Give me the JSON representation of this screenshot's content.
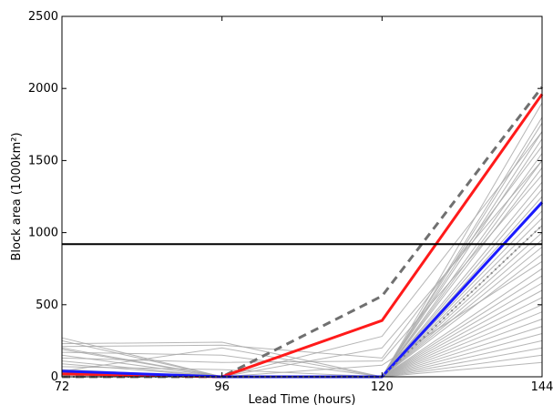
{
  "chart_data": {
    "type": "line",
    "xlabel": "Lead Time (hours)",
    "ylabel": "Block area (1000km²)",
    "x": [
      72,
      96,
      120,
      144
    ],
    "xlim": [
      72,
      144
    ],
    "ylim": [
      0,
      2500
    ],
    "x_ticks": [
      "72",
      "96",
      "120",
      "144"
    ],
    "y_ticks": [
      "0",
      "500",
      "1000",
      "1500",
      "2000",
      "2500"
    ],
    "grid": false,
    "colors": {
      "ensemble": "#a9a9a9",
      "red": "#ff1a1a",
      "blue": "#1a1aff",
      "dashed": "#707070",
      "dotted": "#8a8a8a",
      "threshold": "#000000"
    },
    "threshold": 920,
    "ensemble": [
      [
        270,
        0,
        0,
        1760
      ],
      [
        250,
        0,
        0,
        1700
      ],
      [
        230,
        240,
        0,
        1650
      ],
      [
        210,
        220,
        130,
        1600
      ],
      [
        190,
        0,
        0,
        1550
      ],
      [
        170,
        150,
        0,
        1500
      ],
      [
        150,
        0,
        0,
        1450
      ],
      [
        130,
        100,
        110,
        1400
      ],
      [
        110,
        0,
        0,
        1350
      ],
      [
        90,
        0,
        0,
        1300
      ],
      [
        70,
        50,
        0,
        1250
      ],
      [
        50,
        0,
        0,
        1200
      ],
      [
        40,
        200,
        0,
        1150
      ],
      [
        30,
        0,
        0,
        1100
      ],
      [
        20,
        0,
        0,
        1050
      ],
      [
        10,
        0,
        0,
        1000
      ],
      [
        0,
        0,
        0,
        950
      ],
      [
        0,
        0,
        0,
        900
      ],
      [
        0,
        0,
        0,
        850
      ],
      [
        200,
        0,
        80,
        800
      ],
      [
        0,
        0,
        0,
        750
      ],
      [
        0,
        0,
        0,
        700
      ],
      [
        0,
        0,
        0,
        650
      ],
      [
        0,
        0,
        0,
        600
      ],
      [
        0,
        0,
        0,
        550
      ],
      [
        0,
        0,
        0,
        500
      ],
      [
        0,
        0,
        0,
        450
      ],
      [
        0,
        0,
        0,
        400
      ],
      [
        0,
        0,
        0,
        350
      ],
      [
        0,
        0,
        0,
        300
      ],
      [
        0,
        0,
        0,
        250
      ],
      [
        0,
        0,
        0,
        200
      ],
      [
        0,
        0,
        0,
        150
      ],
      [
        0,
        0,
        0,
        100
      ],
      [
        0,
        0,
        280,
        1700
      ],
      [
        0,
        0,
        200,
        1500
      ],
      [
        0,
        0,
        0,
        1900
      ],
      [
        0,
        0,
        0,
        1800
      ]
    ],
    "series": [
      {
        "style": "dashed",
        "values": [
          0,
          0,
          560,
          2010
        ]
      },
      {
        "style": "red",
        "values": [
          20,
          0,
          390,
          1960
        ]
      },
      {
        "style": "blue",
        "values": [
          40,
          0,
          0,
          1210
        ]
      },
      {
        "style": "dotted",
        "values": [
          0,
          0,
          0,
          1050
        ]
      }
    ]
  }
}
